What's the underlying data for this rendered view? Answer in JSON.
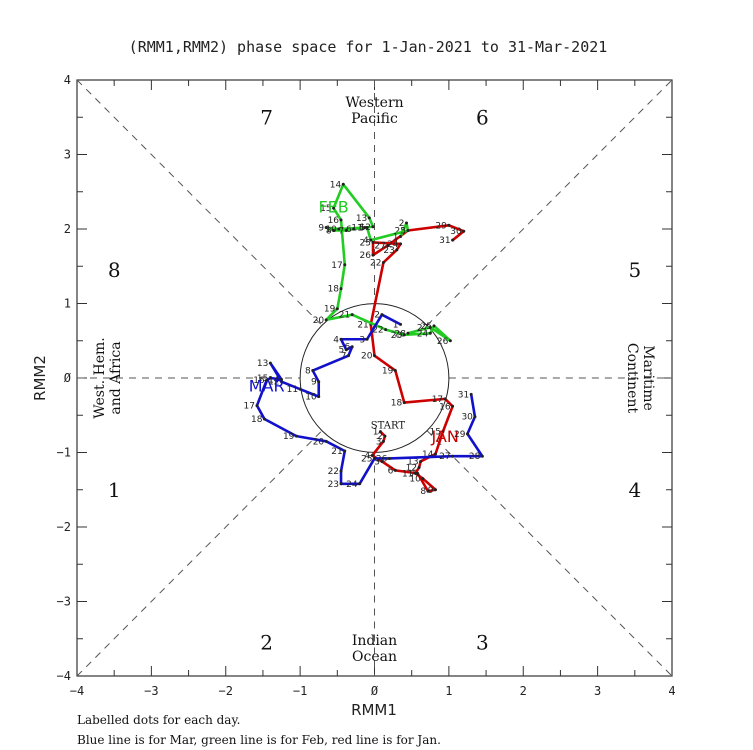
{
  "chart_data": {
    "type": "line",
    "title": "(RMM1,RMM2) phase space for  1-Jan-2021 to 31-Mar-2021",
    "xlabel": "RMM1",
    "ylabel": "RMM2",
    "xlim": [
      -4,
      4
    ],
    "ylim": [
      -4,
      4
    ],
    "xticks": [
      "-4",
      "-3",
      "-2",
      "-1",
      "0",
      "1",
      "2",
      "3",
      "4"
    ],
    "yticks": [
      "4",
      "3",
      "2",
      "1",
      "0",
      "-1",
      "-2",
      "-3",
      "-4"
    ],
    "grid": false,
    "unit_circle_radius": 1,
    "phase_labels": [
      {
        "label": "1",
        "x": -3.5,
        "y": -1.5
      },
      {
        "label": "2",
        "x": -1.45,
        "y": -3.55
      },
      {
        "label": "3",
        "x": 1.45,
        "y": -3.55
      },
      {
        "label": "4",
        "x": 3.5,
        "y": -1.5
      },
      {
        "label": "5",
        "x": 3.5,
        "y": 1.45
      },
      {
        "label": "6",
        "x": 1.45,
        "y": 3.5
      },
      {
        "label": "7",
        "x": -1.45,
        "y": 3.5
      },
      {
        "label": "8",
        "x": -3.5,
        "y": 1.45
      }
    ],
    "region_labels": {
      "top": [
        "Western",
        "Pacific"
      ],
      "bottom": [
        "Indian",
        "Ocean"
      ],
      "left": [
        "West. Hem.",
        "and Africa"
      ],
      "right": [
        "Maritime",
        "Continent"
      ]
    },
    "start_label": "START",
    "series": [
      {
        "name": "Jan",
        "color": "#cc0000",
        "label_pos": [
          0.95,
          -0.78
        ],
        "points": [
          [
            0.08,
            -0.72
          ],
          [
            0.14,
            -0.78
          ],
          [
            0.12,
            -0.85
          ],
          [
            -0.03,
            -1.04
          ],
          [
            0.1,
            -1.12
          ],
          [
            0.28,
            -1.24
          ],
          [
            0.58,
            -1.28
          ],
          [
            0.72,
            -1.52
          ],
          [
            0.82,
            -1.5
          ],
          [
            0.65,
            -1.35
          ],
          [
            0.55,
            -1.28
          ],
          [
            0.6,
            -1.2
          ],
          [
            0.62,
            -1.12
          ],
          [
            0.82,
            -1.02
          ],
          [
            0.92,
            -0.72
          ],
          [
            1.05,
            -0.38
          ],
          [
            0.95,
            -0.28
          ],
          [
            0.4,
            -0.33
          ],
          [
            0.28,
            0.1
          ],
          [
            0.0,
            0.3
          ],
          [
            -0.05,
            0.72
          ],
          [
            0.12,
            1.55
          ],
          [
            0.3,
            1.72
          ],
          [
            0.35,
            1.8
          ],
          [
            -0.02,
            1.82
          ],
          [
            -0.02,
            1.65
          ],
          [
            0.18,
            1.78
          ],
          [
            0.45,
            1.98
          ],
          [
            1.0,
            2.05
          ],
          [
            1.2,
            1.97
          ],
          [
            1.05,
            1.85
          ]
        ]
      },
      {
        "name": "Feb",
        "color": "#22cc22",
        "label_pos": [
          -0.55,
          2.3
        ],
        "points": [
          [
            0.35,
            1.9
          ],
          [
            0.43,
            2.08
          ],
          [
            0.45,
            1.98
          ],
          [
            -0.05,
            1.85
          ],
          [
            -0.1,
            2.02
          ],
          [
            -0.28,
            2.0
          ],
          [
            -0.38,
            1.98
          ],
          [
            -0.55,
            1.98
          ],
          [
            -0.65,
            2.02
          ],
          [
            -0.48,
            2.0
          ],
          [
            -0.13,
            2.02
          ],
          [
            -0.02,
            2.03
          ],
          [
            -0.07,
            2.15
          ],
          [
            -0.42,
            2.6
          ],
          [
            -0.55,
            2.28
          ],
          [
            -0.45,
            2.12
          ],
          [
            -0.4,
            1.52
          ],
          [
            -0.45,
            1.2
          ],
          [
            -0.5,
            0.93
          ],
          [
            -0.65,
            0.78
          ],
          [
            -0.3,
            0.85
          ],
          [
            0.15,
            0.65
          ],
          [
            0.4,
            0.58
          ],
          [
            0.75,
            0.6
          ],
          [
            0.8,
            0.7
          ],
          [
            1.02,
            0.5
          ],
          [
            0.75,
            0.68
          ],
          [
            0.45,
            0.6
          ]
        ]
      },
      {
        "name": "Mar",
        "color": "#1111cc",
        "label_pos": [
          -1.45,
          -0.1
        ],
        "points": [
          [
            0.35,
            0.72
          ],
          [
            0.1,
            0.85
          ],
          [
            -0.1,
            0.52
          ],
          [
            -0.45,
            0.52
          ],
          [
            -0.38,
            0.38
          ],
          [
            -0.3,
            0.42
          ],
          [
            -0.35,
            0.3
          ],
          [
            -0.83,
            0.1
          ],
          [
            -0.75,
            -0.05
          ],
          [
            -0.75,
            -0.25
          ],
          [
            -1.0,
            -0.15
          ],
          [
            -1.25,
            -0.05
          ],
          [
            -1.4,
            0.2
          ],
          [
            -1.25,
            -0.02
          ],
          [
            -1.4,
            0.0
          ],
          [
            -1.45,
            -0.03
          ],
          [
            -1.58,
            -0.37
          ],
          [
            -1.48,
            -0.55
          ],
          [
            -1.05,
            -0.78
          ],
          [
            -0.65,
            -0.85
          ],
          [
            -0.4,
            -0.98
          ],
          [
            -0.45,
            -1.25
          ],
          [
            -0.45,
            -1.42
          ],
          [
            -0.2,
            -1.42
          ],
          [
            0.0,
            -1.08
          ],
          [
            0.2,
            -1.08
          ],
          [
            1.05,
            -1.05
          ],
          [
            1.45,
            -1.05
          ],
          [
            1.25,
            -0.75
          ],
          [
            1.35,
            -0.52
          ],
          [
            1.3,
            -0.22
          ]
        ]
      }
    ]
  },
  "footer": {
    "line1": "Labelled dots for each day.",
    "line2": "Blue line is for Mar, green line is for Feb, red line is for Jan."
  }
}
